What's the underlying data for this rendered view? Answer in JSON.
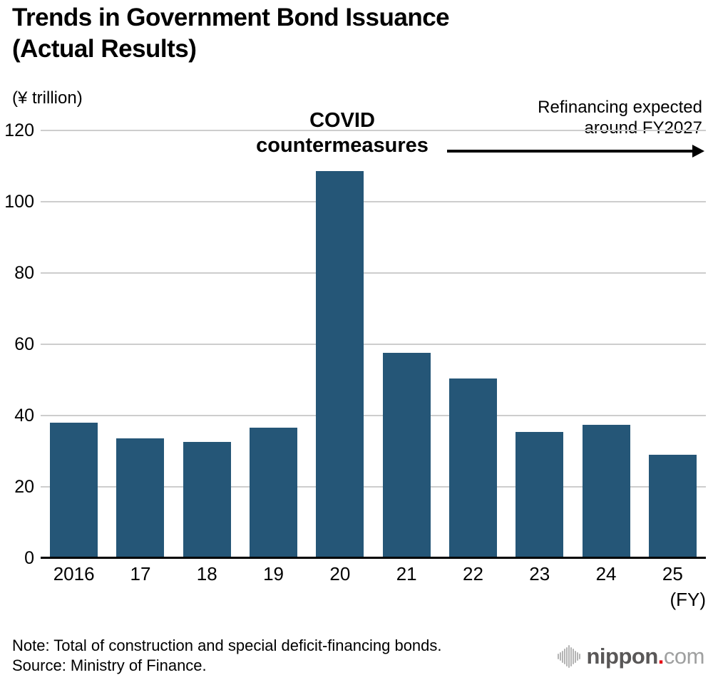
{
  "title": {
    "line1": "Trends in Government Bond Issuance",
    "line2": "(Actual Results)"
  },
  "y_axis_unit": "(¥ trillion)",
  "x_axis_suffix": "(FY)",
  "annotations": {
    "covid_line1": "COVID",
    "covid_line2": "countermeasures",
    "refinance_line1": "Refinancing expected",
    "refinance_line2": "around FY2027",
    "arrow_icon": "right-arrow"
  },
  "chart_data": {
    "type": "bar",
    "categories": [
      "2016",
      "17",
      "18",
      "19",
      "20",
      "21",
      "22",
      "23",
      "24",
      "25"
    ],
    "values": [
      38.0,
      33.6,
      32.7,
      36.6,
      108.6,
      57.7,
      50.5,
      35.4,
      37.5,
      29.0
    ],
    "title": "Trends in Government Bond Issuance (Actual Results)",
    "xlabel": "(FY)",
    "ylabel": "(¥ trillion)",
    "ylim": [
      0,
      120
    ],
    "yticks": [
      0,
      20,
      40,
      60,
      80,
      100,
      120
    ],
    "grid": true,
    "legend": "none",
    "bar_color": "#255677",
    "gridline_color": "#cdcdcd",
    "axis_color": "#000000"
  },
  "notes": {
    "note": "Note: Total of construction and special deficit-financing bonds.",
    "source": "Source: Ministry of Finance."
  },
  "logo": {
    "icon": "soundwave-bars-icon",
    "name": "nippon",
    "dot": ".",
    "domain": "com"
  }
}
